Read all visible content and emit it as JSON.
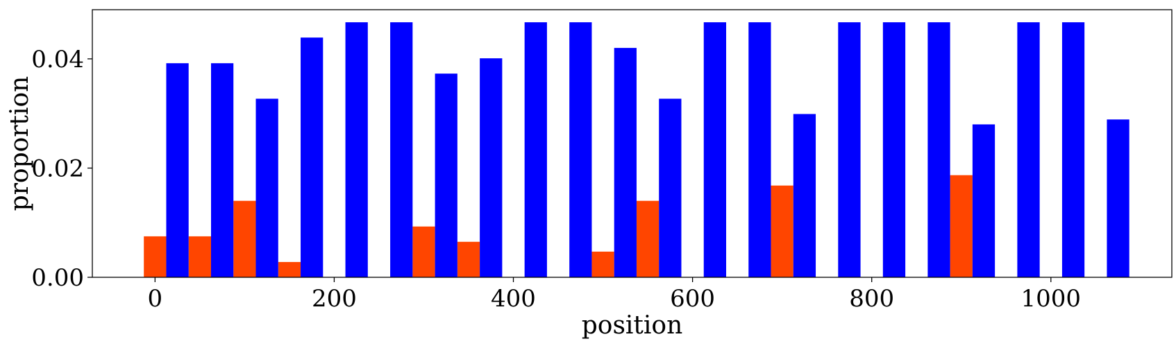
{
  "chart_data": {
    "type": "bar",
    "title": "",
    "xlabel": "position",
    "ylabel": "proportion",
    "xlim": [
      -70,
      1135
    ],
    "ylim": [
      0,
      0.049
    ],
    "xticks": [
      0,
      200,
      400,
      600,
      800,
      1000
    ],
    "xtick_labels": [
      "0",
      "200",
      "400",
      "600",
      "800",
      "1000"
    ],
    "yticks": [
      0,
      0.02,
      0.04
    ],
    "ytick_labels": [
      "0.00",
      "0.02",
      "0.04"
    ],
    "bar_width": 25,
    "grid": false,
    "legend": "none",
    "x": [
      0,
      50,
      100,
      150,
      200,
      250,
      300,
      350,
      400,
      450,
      500,
      550,
      600,
      650,
      700,
      750,
      800,
      850,
      900,
      950,
      1000,
      1050
    ],
    "series": [
      {
        "color": "#ff4500",
        "offset": 0,
        "values": [
          0.0075,
          0.0075,
          0.014,
          0.0028,
          0,
          0,
          0.0093,
          0.0065,
          0,
          0,
          0.0047,
          0.014,
          0,
          0,
          0.0168,
          0,
          0,
          0,
          0.0187,
          0,
          0,
          0
        ]
      },
      {
        "color": "#0000ff",
        "offset": 25,
        "values": [
          0.0392,
          0.0392,
          0.0327,
          0.0439,
          0.0467,
          0.0467,
          0.0373,
          0.0401,
          0.0467,
          0.0467,
          0.042,
          0.0327,
          0.0467,
          0.0467,
          0.0299,
          0.0467,
          0.0467,
          0.0467,
          0.028,
          0.0467,
          0.0467,
          0.0289
        ]
      }
    ]
  }
}
